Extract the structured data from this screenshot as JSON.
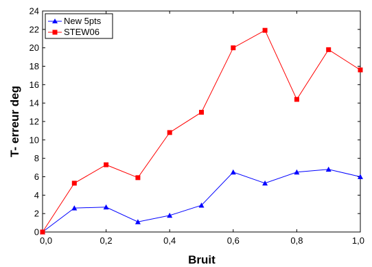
{
  "chart_data": {
    "type": "line",
    "xlabel": "Bruit",
    "ylabel": "T- erreur deg",
    "xlim": [
      0,
      1
    ],
    "ylim": [
      0,
      24
    ],
    "xticks": [
      "0,0",
      "0,2",
      "0,4",
      "0,6",
      "0,8",
      "1,0"
    ],
    "xtick_values": [
      0,
      0.2,
      0.4,
      0.6,
      0.8,
      1.0
    ],
    "yticks": [
      "0",
      "2",
      "4",
      "6",
      "8",
      "10",
      "12",
      "14",
      "16",
      "18",
      "20",
      "22",
      "24"
    ],
    "ytick_values": [
      0,
      2,
      4,
      6,
      8,
      10,
      12,
      14,
      16,
      18,
      20,
      22,
      24
    ],
    "x": [
      0,
      0.1,
      0.2,
      0.3,
      0.4,
      0.5,
      0.6,
      0.7,
      0.8,
      0.9,
      1.0
    ],
    "series": [
      {
        "name": "New 5pts",
        "color": "#0000ff",
        "marker": "triangle",
        "values": [
          0,
          2.6,
          2.7,
          1.1,
          1.8,
          2.9,
          6.5,
          5.3,
          6.5,
          6.8,
          6.0
        ]
      },
      {
        "name": "STEW06",
        "color": "#ff0000",
        "marker": "square",
        "values": [
          0,
          5.3,
          7.3,
          5.9,
          10.8,
          13.0,
          20.0,
          21.9,
          14.4,
          19.8,
          17.6
        ]
      }
    ],
    "legend": "top-left",
    "grid": false
  }
}
